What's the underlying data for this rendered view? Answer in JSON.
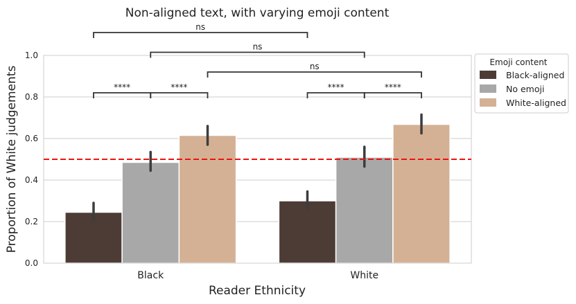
{
  "chart_data": {
    "type": "bar",
    "title": "Non-aligned text, with varying emoji content",
    "xlabel": "Reader Ethnicity",
    "ylabel": "Proportion of White judgements",
    "categories": [
      "Black",
      "White"
    ],
    "ylim": [
      0,
      1.0
    ],
    "yticks": [
      "0.0",
      "0.2",
      "0.4",
      "0.6",
      "0.8",
      "1.0"
    ],
    "grid": "horizontal",
    "legend": {
      "title": "Emoji content",
      "placement": "outside-top-right"
    },
    "series": [
      {
        "name": "Black-aligned",
        "color": "#4d3c35",
        "values": [
          0.245,
          0.3
        ],
        "ci_low": [
          0.205,
          0.26
        ],
        "ci_high": [
          0.29,
          0.345
        ]
      },
      {
        "name": "No emoji",
        "color": "#a8a8a8",
        "values": [
          0.485,
          0.51
        ],
        "ci_low": [
          0.445,
          0.465
        ],
        "ci_high": [
          0.535,
          0.56
        ]
      },
      {
        "name": "White-aligned",
        "color": "#d4b194",
        "values": [
          0.615,
          0.668
        ],
        "ci_low": [
          0.57,
          0.625
        ],
        "ci_high": [
          0.66,
          0.715
        ]
      }
    ],
    "reference_line": {
      "y": 0.5,
      "color": "#ee1111",
      "style": "dashed"
    },
    "annotations": [
      {
        "text": "ns",
        "from": [
          0,
          0
        ],
        "to": [
          1,
          0
        ],
        "level": 1.11
      },
      {
        "text": "ns",
        "from": [
          0,
          1
        ],
        "to": [
          1,
          1
        ],
        "level": 1.015
      },
      {
        "text": "ns",
        "from": [
          0,
          2
        ],
        "to": [
          1,
          2
        ],
        "level": 0.92
      },
      {
        "text": "****",
        "from": [
          0,
          0
        ],
        "to": [
          0,
          1
        ],
        "level": 0.82
      },
      {
        "text": "****",
        "from": [
          0,
          1
        ],
        "to": [
          0,
          2
        ],
        "level": 0.82
      },
      {
        "text": "****",
        "from": [
          1,
          0
        ],
        "to": [
          1,
          1
        ],
        "level": 0.82
      },
      {
        "text": "****",
        "from": [
          1,
          1
        ],
        "to": [
          1,
          2
        ],
        "level": 0.82
      }
    ]
  }
}
